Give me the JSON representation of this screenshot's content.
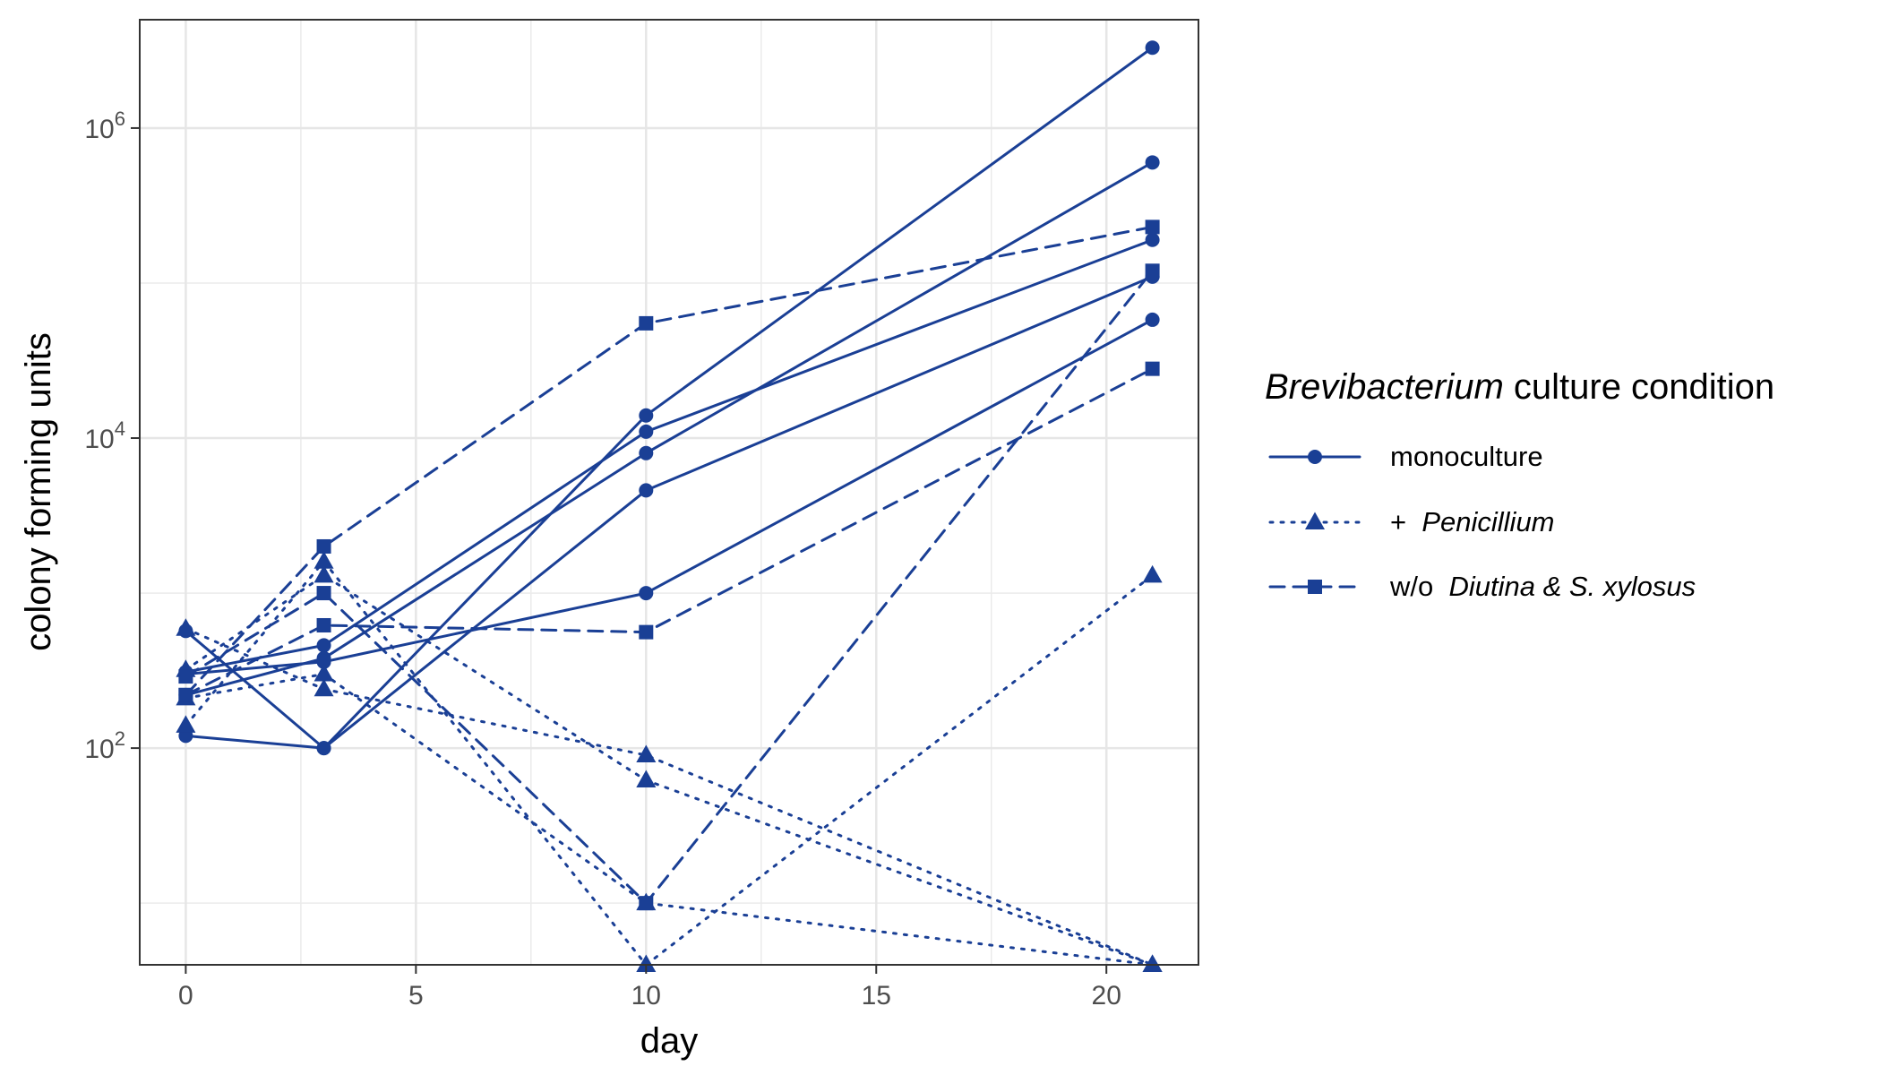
{
  "chart_data": {
    "type": "line",
    "xlabel": "day",
    "ylabel": "colony forming units",
    "x_scale": "linear",
    "y_scale": "log10",
    "xlim": [
      -1,
      22
    ],
    "ylim": [
      4,
      5000000
    ],
    "x_ticks": [
      0,
      5,
      10,
      15,
      20
    ],
    "y_ticks": [
      {
        "value": 100,
        "base": "10",
        "exp": "2"
      },
      {
        "value": 10000,
        "base": "10",
        "exp": "4"
      },
      {
        "value": 1000000,
        "base": "10",
        "exp": "6"
      }
    ],
    "grid": true,
    "color": "#1a3f95",
    "legend": {
      "placement": "right",
      "title_italic": "Brevibacterium",
      "title_rest": " culture condition",
      "entries": [
        {
          "key": "monoculture",
          "prefix": "",
          "label": "monoculture",
          "italic": false,
          "marker": "circle",
          "dash": "solid"
        },
        {
          "key": "penicillium",
          "prefix": "+",
          "label": "Penicillium",
          "italic": true,
          "marker": "triangle",
          "dash": "dotted"
        },
        {
          "key": "wo",
          "prefix": "w/o",
          "label": "Diutina & S. xylosus",
          "italic": true,
          "marker": "square",
          "dash": "dashed"
        }
      ]
    },
    "series": [
      {
        "condition": "monoculture",
        "x": [
          0,
          3,
          10,
          21
        ],
        "y": [
          120,
          100,
          14000,
          3300000
        ]
      },
      {
        "condition": "monoculture",
        "x": [
          0,
          3,
          10,
          21
        ],
        "y": [
          310,
          460,
          11000,
          190000
        ]
      },
      {
        "condition": "monoculture",
        "x": [
          0,
          3,
          10,
          21
        ],
        "y": [
          220,
          380,
          8000,
          600000
        ]
      },
      {
        "condition": "monoculture",
        "x": [
          0,
          3,
          10,
          21
        ],
        "y": [
          570,
          100,
          4600,
          110000
        ]
      },
      {
        "condition": "monoculture",
        "x": [
          0,
          3,
          10,
          21
        ],
        "y": [
          300,
          360,
          1000,
          58000
        ]
      },
      {
        "condition": "penicillium",
        "x": [
          0,
          3,
          10,
          21
        ],
        "y": [
          140,
          1600,
          4,
          1300
        ]
      },
      {
        "condition": "penicillium",
        "x": [
          0,
          3,
          10,
          21
        ],
        "y": [
          590,
          240,
          90,
          4
        ]
      },
      {
        "condition": "penicillium",
        "x": [
          0,
          3,
          10,
          21
        ],
        "y": [
          320,
          1300,
          62,
          4
        ]
      },
      {
        "condition": "penicillium",
        "x": [
          0,
          3,
          10,
          21
        ],
        "y": [
          210,
          300,
          10,
          4
        ]
      },
      {
        "condition": "wo",
        "x": [
          0,
          3,
          10,
          21
        ],
        "y": [
          220,
          2000,
          55000,
          230000
        ]
      },
      {
        "condition": "wo",
        "x": [
          0,
          3,
          10,
          21
        ],
        "y": [
          290,
          1000,
          10,
          120000
        ]
      },
      {
        "condition": "wo",
        "x": [
          0,
          3,
          10,
          21
        ],
        "y": [
          220,
          620,
          560,
          28000
        ]
      }
    ]
  }
}
